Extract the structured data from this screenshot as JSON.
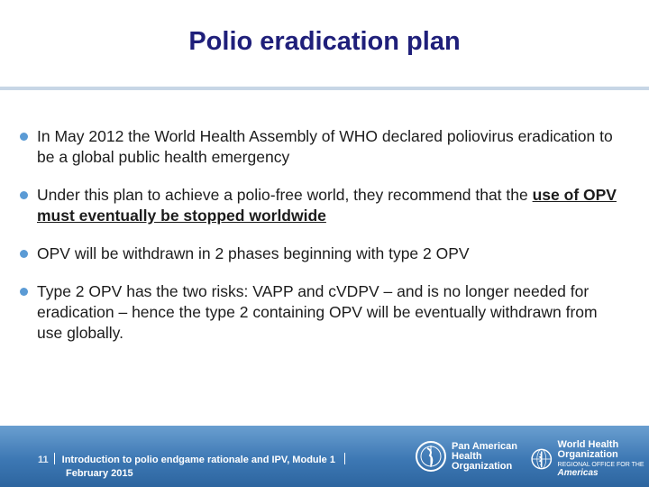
{
  "slide": {
    "title": "Polio eradication plan",
    "bullets": [
      {
        "text": "In May 2012 the World Health Assembly of WHO declared poliovirus eradication to be a global public health emergency"
      },
      {
        "text_before": "Under this plan to achieve a polio-free world, they recommend that the ",
        "text_underlined": "use of OPV must eventually be stopped worldwide"
      },
      {
        "text": "OPV will be withdrawn in 2 phases beginning with type 2 OPV"
      },
      {
        "text": "Type 2 OPV has the two risks: VAPP and cVDPV – and is no longer needed for eradication – hence the type 2 containing OPV will be eventually withdrawn from use globally."
      }
    ]
  },
  "footer": {
    "page_number": "11",
    "module": "Introduction to polio endgame rationale and IPV, Module 1",
    "date": "February 2015",
    "logos": {
      "paho": {
        "line1": "Pan American",
        "line2": "Health",
        "line3": "Organization"
      },
      "who": {
        "line1": "World Health",
        "line2": "Organization",
        "sub_small": "REGIONAL OFFICE FOR THE",
        "sub_big": "Americas"
      }
    }
  },
  "colors": {
    "title": "#1f1f7a",
    "bullet_dot": "#5b9bd5",
    "footer_band": "#3d78b4",
    "title_rule": "#c7d6e6"
  }
}
